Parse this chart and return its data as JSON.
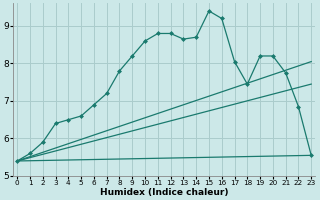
{
  "xlabel": "Humidex (Indice chaleur)",
  "x_ticks": [
    0,
    1,
    2,
    3,
    4,
    5,
    6,
    7,
    8,
    9,
    10,
    11,
    12,
    13,
    14,
    15,
    16,
    17,
    18,
    19,
    20,
    21,
    22,
    23
  ],
  "ylim": [
    5.0,
    9.6
  ],
  "xlim": [
    -0.3,
    23.3
  ],
  "yticks": [
    5,
    6,
    7,
    8,
    9
  ],
  "bg_color": "#cce8e8",
  "grid_color": "#aacccc",
  "line_color": "#1a7a6e",
  "line1_x": [
    0,
    1,
    2,
    3,
    4,
    5,
    6,
    7,
    8,
    9,
    10,
    11,
    12,
    13,
    14,
    15,
    16,
    17,
    18,
    19,
    20,
    21,
    22,
    23
  ],
  "line1_y": [
    5.4,
    5.6,
    5.9,
    6.4,
    6.5,
    6.6,
    6.9,
    7.2,
    7.8,
    8.2,
    8.6,
    8.8,
    8.8,
    8.65,
    8.7,
    9.4,
    9.2,
    8.05,
    7.45,
    8.2,
    8.2,
    7.75,
    6.85,
    5.55
  ],
  "line2_x": [
    0,
    23
  ],
  "line2_y": [
    5.4,
    5.55
  ],
  "line3_x": [
    0,
    23
  ],
  "line3_y": [
    5.4,
    7.45
  ],
  "line4_x": [
    0,
    23
  ],
  "line4_y": [
    5.4,
    8.05
  ]
}
